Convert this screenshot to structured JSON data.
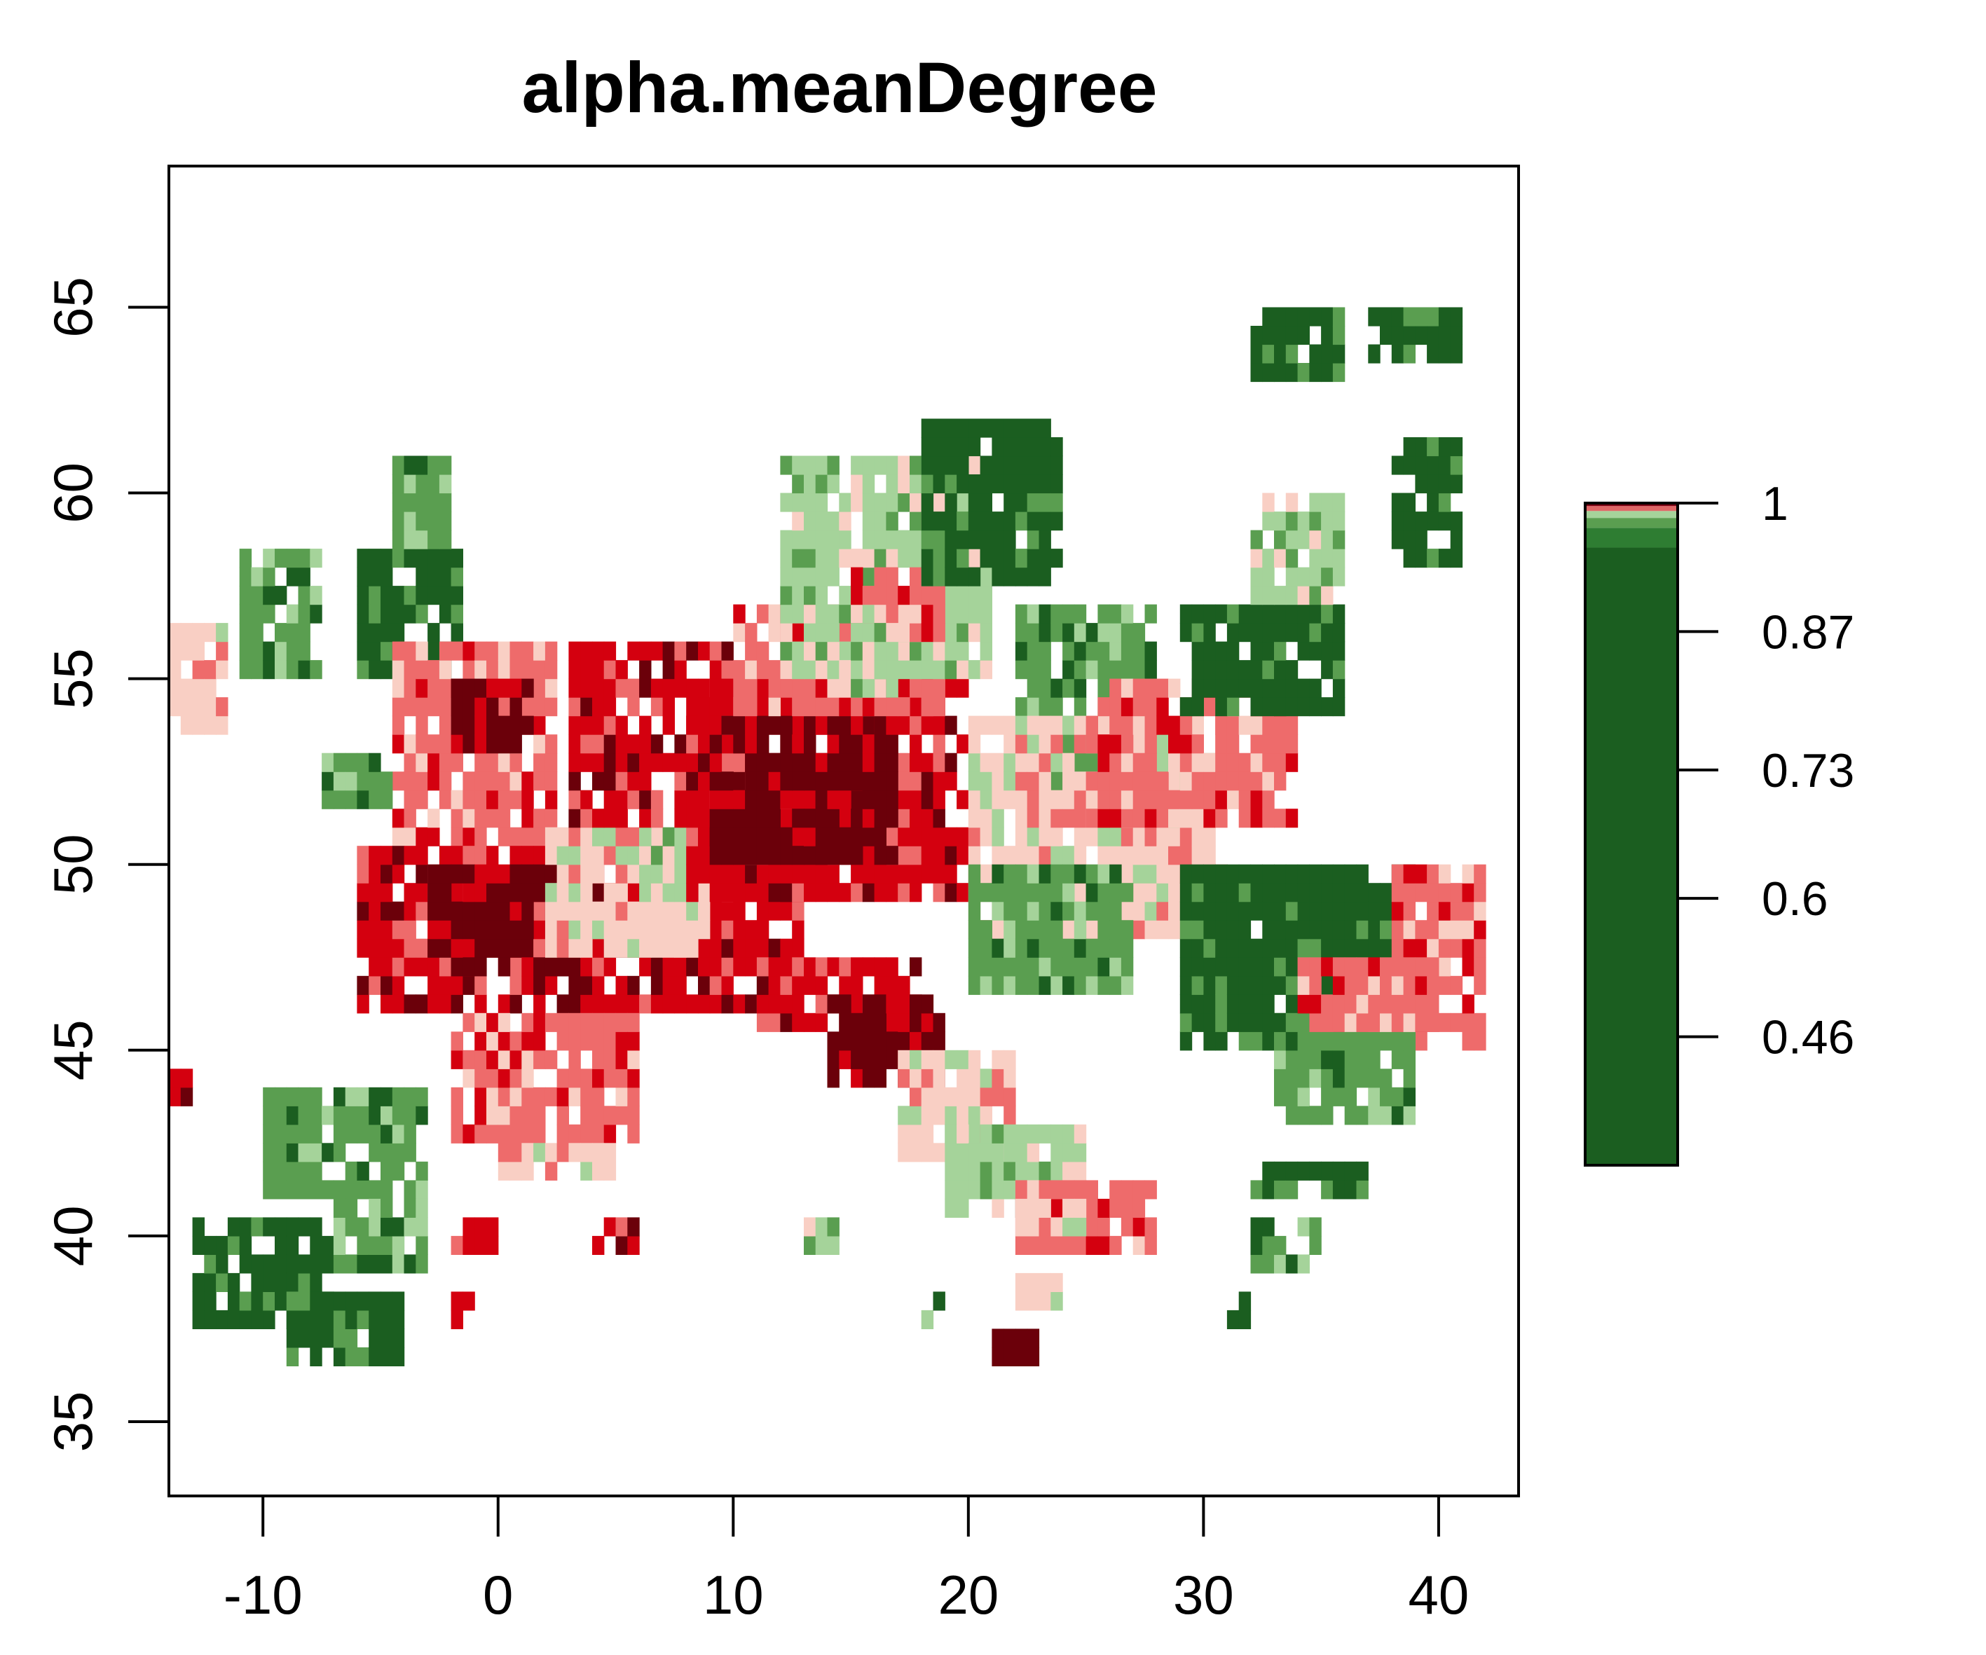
{
  "chart_data": {
    "type": "heatmap",
    "title": "alpha.meanDegree",
    "xlabel": "",
    "ylabel": "",
    "xlim": [
      -14,
      43.4
    ],
    "ylim": [
      33,
      68.8
    ],
    "x_ticks": [
      -10,
      0,
      10,
      20,
      30,
      40
    ],
    "y_ticks": [
      35,
      40,
      45,
      50,
      55,
      60,
      65
    ],
    "x_tick_labels": [
      "-10",
      "0",
      "10",
      "20",
      "30",
      "40"
    ],
    "y_tick_labels": [
      "35",
      "40",
      "45",
      "50",
      "55",
      "60",
      "65"
    ],
    "cell_size_deg": 1,
    "legend": {
      "placement": "right",
      "range": [
        0.33,
        1.0
      ],
      "ticks": [
        1,
        0.87,
        0.73,
        0.6,
        0.46
      ],
      "tick_labels": [
        "1",
        "0.87",
        "0.73",
        "0.6",
        "0.46"
      ],
      "bands": [
        {
          "from": 0.33,
          "to": 0.955,
          "color": "#1b5e20"
        },
        {
          "from": 0.955,
          "to": 0.975,
          "color": "#2e7d32"
        },
        {
          "from": 0.975,
          "to": 0.985,
          "color": "#5a9e50"
        },
        {
          "from": 0.985,
          "to": 0.992,
          "color": "#a5d39a"
        },
        {
          "from": 0.992,
          "to": 0.997,
          "color": "#e06666"
        },
        {
          "from": 0.997,
          "to": 1.0,
          "color": "#7b0011"
        }
      ]
    },
    "color_scale": {
      "0": "#1b5e20",
      "1": "#5a9e50",
      "2": "#a5d39a",
      "3": "#f9cfc4",
      "4": "#ee6b6b",
      "5": "#d4000f",
      "6": "#6b000a"
    },
    "regions": [
      {
        "name": "",
        "x": [
          -14,
          -11.5
        ],
        "y": [
          53.5,
          56.5
        ],
        "level": 3
      },
      {
        "name": "",
        "x": [
          -11,
          -7.5
        ],
        "y": [
          55,
          58.5
        ],
        "level": 1
      },
      {
        "name": "",
        "x": [
          -6,
          -1.5
        ],
        "y": [
          55,
          58.5
        ],
        "level": 0
      },
      {
        "name": "",
        "x": [
          -4.5,
          -2
        ],
        "y": [
          58.5,
          61
        ],
        "level": 1
      },
      {
        "name": "",
        "x": [
          -4.5,
          2.5
        ],
        "y": [
          50.5,
          56
        ],
        "level": 4
      },
      {
        "name": "",
        "x": [
          -2,
          1.5
        ],
        "y": [
          53,
          55
        ],
        "level": 6
      },
      {
        "name": "",
        "x": [
          -7.5,
          -4.5
        ],
        "y": [
          51.5,
          53
        ],
        "level": 1
      },
      {
        "name": "",
        "x": [
          -6,
          13
        ],
        "y": [
          46,
          50.5
        ],
        "level": 5
      },
      {
        "name": "",
        "x": [
          -3,
          3
        ],
        "y": [
          47,
          50
        ],
        "level": 6
      },
      {
        "name": "",
        "x": [
          2,
          9
        ],
        "y": [
          47.5,
          51
        ],
        "level": 3
      },
      {
        "name": "",
        "x": [
          6,
          8
        ],
        "y": [
          49,
          51
        ],
        "level": 2
      },
      {
        "name": "",
        "x": [
          -2,
          6
        ],
        "y": [
          42.5,
          46
        ],
        "level": 4
      },
      {
        "name": "",
        "x": [
          3,
          10
        ],
        "y": [
          51,
          56
        ],
        "level": 5
      },
      {
        "name": "",
        "x": [
          8,
          20
        ],
        "y": [
          49,
          55
        ],
        "level": 5
      },
      {
        "name": "",
        "x": [
          9,
          17
        ],
        "y": [
          50,
          54
        ],
        "level": 6
      },
      {
        "name": "",
        "x": [
          10,
          19
        ],
        "y": [
          54,
          57
        ],
        "level": 4
      },
      {
        "name": "",
        "x": [
          12,
          21
        ],
        "y": [
          55,
          61
        ],
        "level": 2
      },
      {
        "name": "",
        "x": [
          15,
          19
        ],
        "y": [
          56,
          58
        ],
        "level": 4
      },
      {
        "name": "",
        "x": [
          18,
          24
        ],
        "y": [
          57.5,
          62
        ],
        "level": 0
      },
      {
        "name": "",
        "x": [
          22,
          28
        ],
        "y": [
          52,
          57
        ],
        "level": 1
      },
      {
        "name": "",
        "x": [
          20,
          31
        ],
        "y": [
          48,
          54
        ],
        "level": 3
      },
      {
        "name": "",
        "x": [
          25,
          34
        ],
        "y": [
          51,
          55
        ],
        "level": 4
      },
      {
        "name": "",
        "x": [
          29,
          36
        ],
        "y": [
          54,
          57
        ],
        "level": 0
      },
      {
        "name": "",
        "x": [
          32,
          36
        ],
        "y": [
          57,
          60
        ],
        "level": 2
      },
      {
        "name": "",
        "x": [
          20,
          27
        ],
        "y": [
          46.5,
          50
        ],
        "level": 1
      },
      {
        "name": "",
        "x": [
          29,
          39
        ],
        "y": [
          45,
          50
        ],
        "level": 0
      },
      {
        "name": "",
        "x": [
          38,
          42
        ],
        "y": [
          45,
          50
        ],
        "level": 4
      },
      {
        "name": "",
        "x": [
          33,
          39
        ],
        "y": [
          43,
          46
        ],
        "level": 1
      },
      {
        "name": "",
        "x": [
          34,
          40
        ],
        "y": [
          45.5,
          47.5
        ],
        "level": 4
      },
      {
        "name": "",
        "x": [
          11,
          18
        ],
        "y": [
          45.5,
          47.5
        ],
        "level": 5
      },
      {
        "name": "",
        "x": [
          14,
          19
        ],
        "y": [
          44,
          46.5
        ],
        "level": 6
      },
      {
        "name": "",
        "x": [
          17,
          22
        ],
        "y": [
          42,
          45
        ],
        "level": 3
      },
      {
        "name": "",
        "x": [
          19,
          25
        ],
        "y": [
          40.5,
          43
        ],
        "level": 2
      },
      {
        "name": "",
        "x": [
          22,
          28
        ],
        "y": [
          39.5,
          41.5
        ],
        "level": 4
      },
      {
        "name": "",
        "x": [
          -10,
          -3
        ],
        "y": [
          41,
          44
        ],
        "level": 1
      },
      {
        "name": "",
        "x": [
          -13,
          -7
        ],
        "y": [
          37.5,
          40.5
        ],
        "level": 0
      },
      {
        "name": "",
        "x": [
          -9,
          -4
        ],
        "y": [
          36.5,
          38.5
        ],
        "level": 0
      },
      {
        "name": "",
        "x": [
          -7,
          -3
        ],
        "y": [
          39,
          41
        ],
        "level": 1
      },
      {
        "name": "",
        "x": [
          0,
          5
        ],
        "y": [
          41.5,
          42.5
        ],
        "level": 3
      },
      {
        "name": "",
        "x": [
          32,
          36
        ],
        "y": [
          63,
          65
        ],
        "level": 0
      },
      {
        "name": "",
        "x": [
          37,
          41
        ],
        "y": [
          63.5,
          65
        ],
        "level": 0
      },
      {
        "name": "",
        "x": [
          38,
          41
        ],
        "y": [
          58,
          61.5
        ],
        "level": 0
      },
      {
        "name": "",
        "x": [
          32,
          37
        ],
        "y": [
          41,
          42
        ],
        "level": 0
      },
      {
        "name": "",
        "x": [
          32,
          35
        ],
        "y": [
          39,
          40.5
        ],
        "level": 1
      },
      {
        "name": "",
        "x": [
          13,
          14.5
        ],
        "y": [
          39.5,
          40.5
        ],
        "level": 2
      },
      {
        "name": "",
        "x": [
          4,
          6
        ],
        "y": [
          39.5,
          40.5
        ],
        "level": 5
      },
      {
        "name": "",
        "x": [
          22,
          25
        ],
        "y": [
          40,
          41
        ],
        "level": 3
      },
      {
        "name": "",
        "x": [
          22,
          24
        ],
        "y": [
          38,
          39
        ],
        "level": 3
      },
      {
        "name": "",
        "x": [
          21,
          23
        ],
        "y": [
          36.5,
          37.5
        ],
        "level": 6
      },
      {
        "name": "",
        "x": [
          18,
          19
        ],
        "y": [
          37.5,
          38.5
        ],
        "level": 1
      },
      {
        "name": "",
        "x": [
          -14,
          -13
        ],
        "y": [
          43.5,
          44.5
        ],
        "level": 6
      },
      {
        "name": "",
        "x": [
          -2,
          0
        ],
        "y": [
          39.5,
          40.5
        ],
        "level": 5
      },
      {
        "name": "",
        "x": [
          -2,
          -1
        ],
        "y": [
          37.5,
          38.5
        ],
        "level": 5
      },
      {
        "name": "",
        "x": [
          31,
          32
        ],
        "y": [
          37.5,
          38.5
        ],
        "level": 0
      },
      {
        "name": "",
        "x": [
          14,
          17
        ],
        "y": [
          54.5,
          56.5
        ],
        "level": 2
      }
    ]
  }
}
